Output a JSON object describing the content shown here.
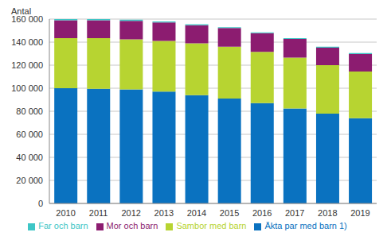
{
  "chart_data": {
    "type": "bar",
    "y_label": "Antal",
    "stacked": true,
    "grid": true,
    "legend": "bottom",
    "categories": [
      "2010",
      "2011",
      "2012",
      "2013",
      "2014",
      "2015",
      "2016",
      "2017",
      "2018",
      "2019"
    ],
    "ylim": [
      0,
      160000
    ],
    "yticks": [
      0,
      {
        "value": 20000,
        "label": "20 000"
      },
      {
        "value": 40000,
        "label": "40 000"
      },
      {
        "value": 60000,
        "label": "60 000"
      },
      {
        "value": 80000,
        "label": "80 000"
      },
      {
        "value": 100000,
        "label": "100 000"
      },
      {
        "value": 120000,
        "label": "120 000"
      },
      {
        "value": 140000,
        "label": "140 000"
      },
      {
        "value": 160000,
        "label": "160 000"
      }
    ],
    "series": [
      {
        "name": "Äkta par med barn 1)",
        "color": "#0a72c0",
        "values": [
          100000,
          99500,
          99000,
          97000,
          94000,
          91000,
          87000,
          82500,
          78000,
          74000
        ]
      },
      {
        "name": "Sambor med barn",
        "color": "#b7d431",
        "values": [
          43500,
          44000,
          43500,
          44000,
          45000,
          45000,
          44500,
          44000,
          42000,
          40500
        ]
      },
      {
        "name": "Mor och barn",
        "color": "#8c1c70",
        "values": [
          15500,
          15400,
          16000,
          16000,
          15700,
          16200,
          16200,
          16200,
          15200,
          15200
        ]
      },
      {
        "name": "Far och barn",
        "color": "#3ec6c6",
        "values": [
          1000,
          1100,
          1000,
          1000,
          800,
          800,
          800,
          800,
          800,
          800
        ]
      }
    ]
  }
}
